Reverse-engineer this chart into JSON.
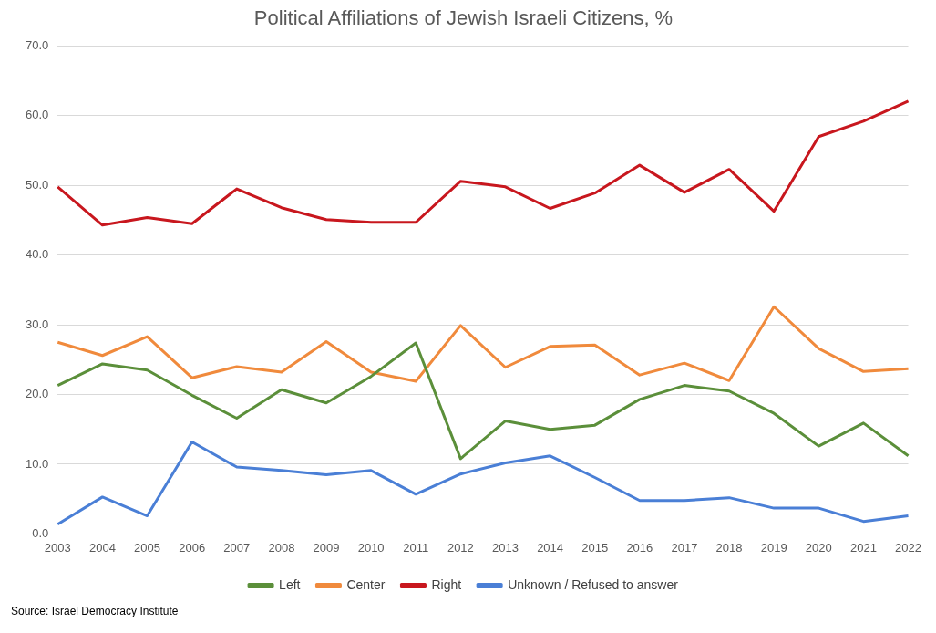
{
  "chart_data": {
    "type": "line",
    "title": "Political Affiliations of Jewish Israeli Citizens, %",
    "categories": [
      "2003",
      "2004",
      "2005",
      "2006",
      "2007",
      "2008",
      "2009",
      "2010",
      "2011",
      "2012",
      "2013",
      "2014",
      "2015",
      "2016",
      "2017",
      "2018",
      "2019",
      "2020",
      "2021",
      "2022"
    ],
    "series": [
      {
        "name": "Left",
        "color": "#5b8f3a",
        "values": [
          21.3,
          24.4,
          23.5,
          19.9,
          16.6,
          20.7,
          18.8,
          22.6,
          27.4,
          10.8,
          16.2,
          15.0,
          15.6,
          19.3,
          21.3,
          20.5,
          17.3,
          12.6,
          15.9,
          11.2
        ]
      },
      {
        "name": "Center",
        "color": "#f08a3c",
        "values": [
          27.5,
          25.6,
          28.3,
          22.4,
          24.0,
          23.2,
          27.6,
          23.2,
          21.9,
          29.9,
          23.9,
          26.9,
          27.1,
          22.8,
          24.5,
          22.0,
          32.6,
          26.6,
          23.3,
          23.7
        ]
      },
      {
        "name": "Right",
        "color": "#c8171e",
        "values": [
          49.8,
          44.3,
          45.4,
          44.5,
          49.5,
          46.8,
          45.1,
          44.7,
          44.7,
          50.6,
          49.8,
          46.7,
          48.9,
          52.9,
          49.0,
          52.3,
          46.3,
          57.0,
          59.2,
          62.1
        ]
      },
      {
        "name": "Unknown / Refused to answer",
        "color": "#4a7fd6",
        "values": [
          1.4,
          5.3,
          2.6,
          13.2,
          9.6,
          9.1,
          8.5,
          9.1,
          5.7,
          8.6,
          10.2,
          11.2,
          8.1,
          4.8,
          4.8,
          5.2,
          3.7,
          3.7,
          1.8,
          2.6
        ]
      }
    ],
    "ylim": [
      0,
      70
    ],
    "yticks": [
      {
        "value": 0,
        "label": "0.0"
      },
      {
        "value": 10,
        "label": "10.0"
      },
      {
        "value": 20,
        "label": "20.0"
      },
      {
        "value": 30,
        "label": "30.0"
      },
      {
        "value": 40,
        "label": "40.0"
      },
      {
        "value": 50,
        "label": "50.0"
      },
      {
        "value": 60,
        "label": "60.0"
      },
      {
        "value": 70,
        "label": "70.0"
      }
    ],
    "grid": "y",
    "legend": "bottom",
    "marker": "none",
    "line_style": "solid",
    "annotations": [
      "Source: Israel Democracy Institute"
    ]
  }
}
